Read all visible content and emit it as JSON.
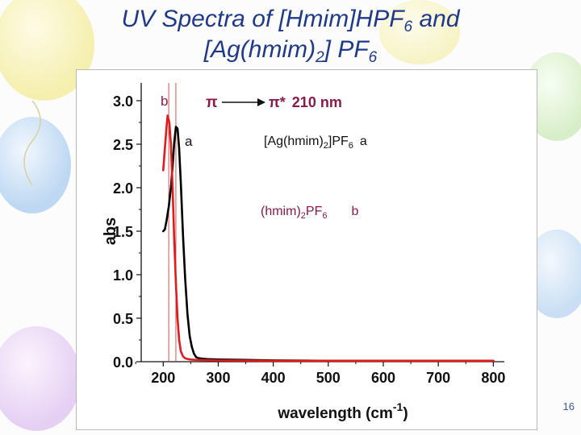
{
  "slide": {
    "title_line_1": {
      "main": "UV Spectra of [Hmim]HPF",
      "sub": "6",
      "tail": " and"
    },
    "title_line_2": {
      "main": "[Ag(hmim)",
      "sub": "2",
      "tail": "] PF",
      "sub2": "6"
    },
    "page_number": "16"
  },
  "colors": {
    "title": "#1f3a8c",
    "series_a": "#000000",
    "series_b": "#e31a1c",
    "annotation_pi": "#8b1a4a",
    "page_number": "#3a5aa8"
  },
  "chart_data": {
    "type": "line",
    "xlabel": "wavelength (cm",
    "xlabel_sup": "-1",
    "xlabel_tail": ")",
    "ylabel": "abs",
    "xlim": [
      160,
      820
    ],
    "ylim": [
      0.0,
      3.0
    ],
    "x_ticks": [
      200,
      300,
      400,
      500,
      600,
      700,
      800
    ],
    "y_ticks": [
      0.0,
      0.5,
      1.0,
      1.5,
      2.0,
      2.5,
      3.0
    ],
    "y_tick_labels": [
      "0.0",
      "0.5",
      "1.0",
      "1.5",
      "2.0",
      "2.5",
      "3.0"
    ],
    "grid": false,
    "reference_lines_x": [
      210,
      223
    ],
    "series": [
      {
        "name": "a",
        "x": [
          200,
          203,
          206,
          210,
          214,
          217,
          220,
          223,
          226,
          229,
          232,
          236,
          240,
          244,
          248,
          252,
          256,
          260,
          265,
          270,
          280,
          300,
          350,
          400,
          500,
          600,
          700,
          800
        ],
        "y": [
          1.5,
          1.52,
          1.62,
          1.78,
          2.0,
          2.25,
          2.52,
          2.7,
          2.68,
          2.45,
          2.05,
          1.45,
          0.95,
          0.55,
          0.3,
          0.17,
          0.09,
          0.05,
          0.04,
          0.035,
          0.03,
          0.025,
          0.02,
          0.015,
          0.01,
          0.01,
          0.01,
          0.01
        ]
      },
      {
        "name": "b",
        "x": [
          200,
          203,
          206,
          208,
          211,
          214,
          217,
          220,
          223,
          226,
          229,
          232,
          236,
          240,
          245,
          250,
          260,
          300,
          400,
          500,
          600,
          700,
          800
        ],
        "y": [
          2.2,
          2.45,
          2.7,
          2.83,
          2.75,
          2.5,
          2.0,
          1.4,
          0.9,
          0.5,
          0.25,
          0.12,
          0.06,
          0.04,
          0.03,
          0.025,
          0.02,
          0.015,
          0.01,
          0.01,
          0.01,
          0.01,
          0.01
        ]
      }
    ],
    "annotations": {
      "curve_label_b": "b",
      "curve_label_a": "a",
      "transition_from": "π",
      "transition_to": "π*",
      "transition_value": "210 nm",
      "legend_a": {
        "main": "[Ag(hmim)",
        "sub": "2",
        "tail": "]PF",
        "sub2": "6",
        "key": "a"
      },
      "legend_b": {
        "main": "(hmim)",
        "sub": "2",
        "tail": "PF",
        "sub2": "6",
        "key": "b"
      }
    }
  }
}
